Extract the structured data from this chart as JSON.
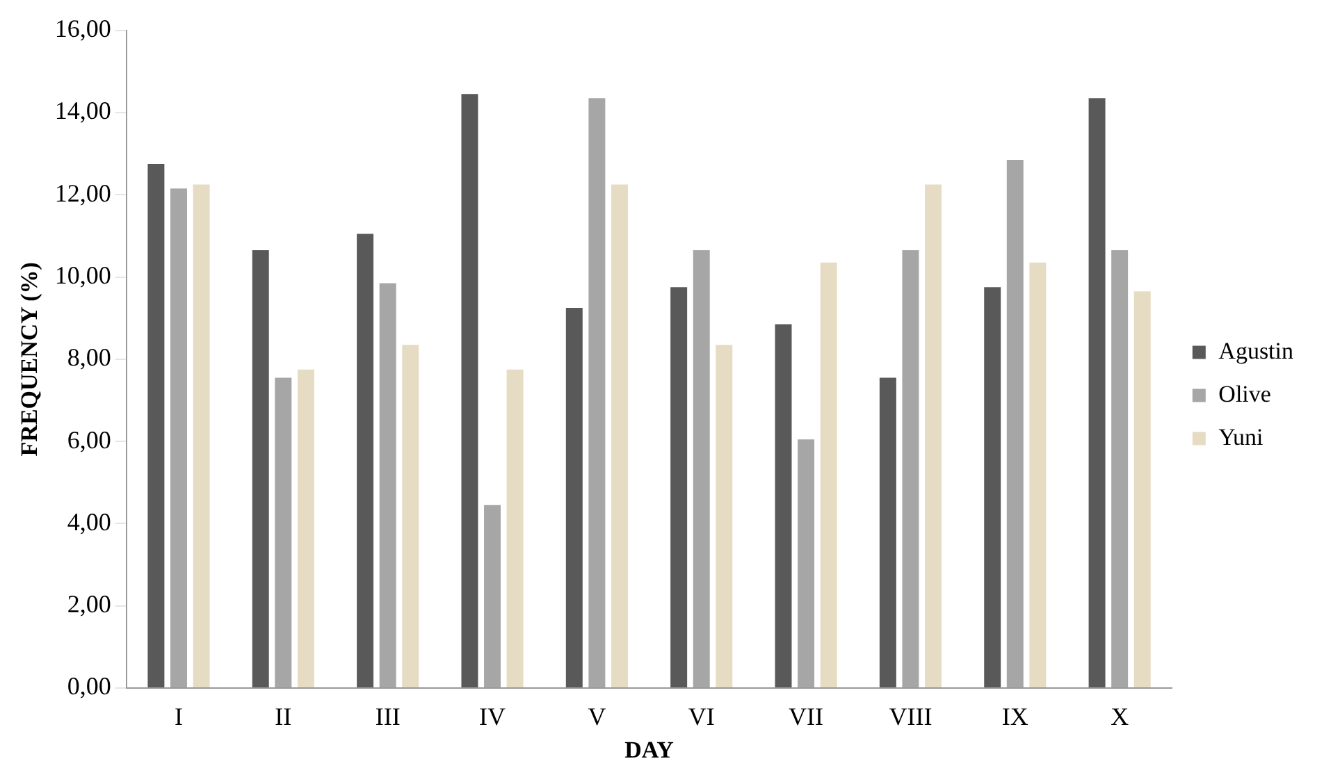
{
  "chart_data": {
    "type": "bar",
    "xlabel": "DAY",
    "ylabel": "FREQUENCY (%)",
    "categories": [
      "I",
      "II",
      "III",
      "IV",
      "V",
      "VI",
      "VII",
      "VIII",
      "IX",
      "X"
    ],
    "series": [
      {
        "name": "Agustin",
        "color": "#595959",
        "values": [
          12.8,
          10.7,
          11.1,
          14.5,
          9.3,
          9.8,
          8.9,
          7.6,
          9.8,
          14.4
        ]
      },
      {
        "name": "Olive",
        "color": "#a6a6a6",
        "values": [
          12.2,
          7.6,
          9.9,
          4.5,
          14.4,
          10.7,
          6.1,
          10.7,
          12.9,
          10.7
        ]
      },
      {
        "name": "Yuni",
        "color": "#e6dcc3",
        "values": [
          12.3,
          7.8,
          8.4,
          7.8,
          12.3,
          8.4,
          10.4,
          12.3,
          10.4,
          9.7
        ]
      }
    ],
    "ylim": [
      0,
      16
    ],
    "yticks": [
      {
        "value": 0,
        "label": "0,00"
      },
      {
        "value": 2,
        "label": "2,00"
      },
      {
        "value": 4,
        "label": "4,00"
      },
      {
        "value": 6,
        "label": "6,00"
      },
      {
        "value": 8,
        "label": "8,00"
      },
      {
        "value": 10,
        "label": "10,00"
      },
      {
        "value": 12,
        "label": "12,00"
      },
      {
        "value": 14,
        "label": "14,00"
      },
      {
        "value": 16,
        "label": "16,00"
      }
    ],
    "grid": false,
    "legend": "right"
  }
}
